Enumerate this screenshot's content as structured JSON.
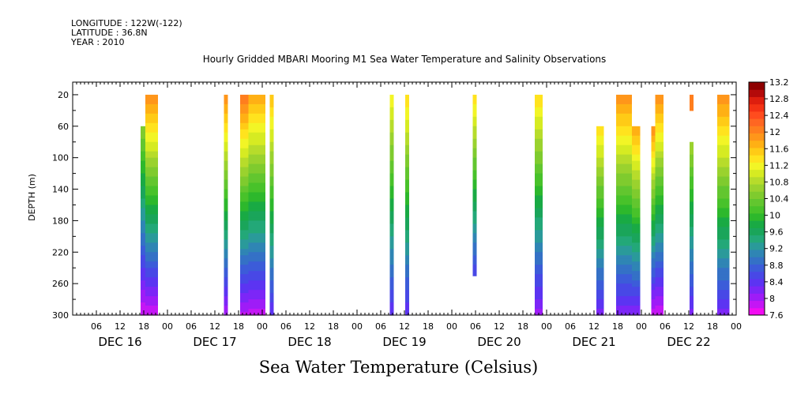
{
  "header": {
    "longitude": "LONGITUDE : 122W(-122)",
    "latitude": "LATITUDE : 36.8N",
    "year": "YEAR : 2010"
  },
  "chart_data": {
    "type": "heatmap",
    "title": "Hourly Gridded MBARI Mooring M1 Sea Water Temperature and Salinity Observations",
    "bottom_label": "Sea Water Temperature (Celsius)",
    "ylabel": "DEPTH (m)",
    "ylim": [
      300,
      0
    ],
    "y_ticks": [
      20,
      60,
      100,
      140,
      180,
      220,
      260,
      300
    ],
    "x_unit": "hours since 2010-12-16 00:00",
    "xlim": [
      0,
      168
    ],
    "x_hour_ticks": [
      {
        "h": 6,
        "label": "06"
      },
      {
        "h": 12,
        "label": "12"
      },
      {
        "h": 18,
        "label": "18"
      },
      {
        "h": 24,
        "label": "00"
      },
      {
        "h": 30,
        "label": "06"
      },
      {
        "h": 36,
        "label": "12"
      },
      {
        "h": 42,
        "label": "18"
      },
      {
        "h": 48,
        "label": "00"
      },
      {
        "h": 54,
        "label": "06"
      },
      {
        "h": 60,
        "label": "12"
      },
      {
        "h": 66,
        "label": "18"
      },
      {
        "h": 72,
        "label": "00"
      },
      {
        "h": 78,
        "label": "06"
      },
      {
        "h": 84,
        "label": "12"
      },
      {
        "h": 90,
        "label": "18"
      },
      {
        "h": 96,
        "label": "00"
      },
      {
        "h": 102,
        "label": "06"
      },
      {
        "h": 108,
        "label": "12"
      },
      {
        "h": 114,
        "label": "18"
      },
      {
        "h": 120,
        "label": "00"
      },
      {
        "h": 126,
        "label": "06"
      },
      {
        "h": 132,
        "label": "12"
      },
      {
        "h": 138,
        "label": "18"
      },
      {
        "h": 144,
        "label": "00"
      },
      {
        "h": 150,
        "label": "06"
      },
      {
        "h": 156,
        "label": "12"
      },
      {
        "h": 162,
        "label": "18"
      },
      {
        "h": 168,
        "label": "00"
      }
    ],
    "day_labels": [
      {
        "h": 12,
        "label": "DEC 16"
      },
      {
        "h": 36,
        "label": "DEC 17"
      },
      {
        "h": 60,
        "label": "DEC 18"
      },
      {
        "h": 84,
        "label": "DEC 19"
      },
      {
        "h": 108,
        "label": "DEC 20"
      },
      {
        "h": 132,
        "label": "DEC 21"
      },
      {
        "h": 156,
        "label": "DEC 22"
      }
    ],
    "colorbar": {
      "min": 7.6,
      "max": 13.2,
      "step": 0.2,
      "labels": [
        "7.6",
        "8",
        "8.4",
        "8.8",
        "9.2",
        "9.6",
        "10",
        "10.4",
        "10.8",
        "11.2",
        "11.6",
        "12",
        "12.4",
        "12.8",
        "13.2"
      ],
      "colors": [
        "#f20cf2",
        "#c416f5",
        "#9e1cf7",
        "#7c26f7",
        "#5c34f2",
        "#4848e6",
        "#3c5cd9",
        "#3471c6",
        "#2f85b4",
        "#2a9a9a",
        "#23a878",
        "#1aa55a",
        "#19aa44",
        "#2db82c",
        "#48c22a",
        "#62c62f",
        "#7fcb2e",
        "#9ad22e",
        "#b7dc2b",
        "#d6eb22",
        "#f2f526",
        "#ffe31e",
        "#ffcb16",
        "#ffb014",
        "#ff961a",
        "#ff7e1e",
        "#ff6622",
        "#ff4c1e",
        "#f43214",
        "#de1e0e",
        "#b40a0a",
        "#8e0000"
      ]
    },
    "columns": [
      {
        "x0": 17.2,
        "x1": 18.4,
        "top": 60,
        "bottom": 300,
        "t_top": 11.0,
        "t_bot": 7.8
      },
      {
        "x0": 18.4,
        "x1": 21.6,
        "top": 20,
        "bottom": 300,
        "t_top": 12.6,
        "t_bot": 7.8
      },
      {
        "x0": 38.3,
        "x1": 39.3,
        "top": 20,
        "bottom": 300,
        "t_top": 12.6,
        "t_bot": 8.0
      },
      {
        "x0": 42.4,
        "x1": 44.5,
        "top": 20,
        "bottom": 300,
        "t_top": 12.8,
        "t_bot": 7.9
      },
      {
        "x0": 44.5,
        "x1": 48.8,
        "top": 20,
        "bottom": 300,
        "t_top": 12.4,
        "t_bot": 7.9
      },
      {
        "x0": 49.9,
        "x1": 50.9,
        "top": 20,
        "bottom": 300,
        "t_top": 12.2,
        "t_bot": 8.4
      },
      {
        "x0": 80.3,
        "x1": 81.3,
        "top": 20,
        "bottom": 300,
        "t_top": 11.8,
        "t_bot": 8.4
      },
      {
        "x0": 84.2,
        "x1": 85.2,
        "top": 20,
        "bottom": 300,
        "t_top": 12.0,
        "t_bot": 8.4
      },
      {
        "x0": 101.3,
        "x1": 102.3,
        "top": 20,
        "bottom": 250,
        "t_top": 12.0,
        "t_bot": 8.6
      },
      {
        "x0": 117.0,
        "x1": 119.0,
        "top": 20,
        "bottom": 300,
        "t_top": 12.0,
        "t_bot": 8.1
      },
      {
        "x0": 132.6,
        "x1": 134.5,
        "top": 60,
        "bottom": 300,
        "t_top": 12.0,
        "t_bot": 8.3
      },
      {
        "x0": 137.6,
        "x1": 139.6,
        "top": 20,
        "bottom": 300,
        "t_top": 12.6,
        "t_bot": 8.2
      },
      {
        "x0": 139.6,
        "x1": 141.6,
        "top": 20,
        "bottom": 300,
        "t_top": 12.6,
        "t_bot": 8.2
      },
      {
        "x0": 141.6,
        "x1": 143.7,
        "top": 60,
        "bottom": 300,
        "t_top": 12.4,
        "t_bot": 8.2
      },
      {
        "x0": 146.5,
        "x1": 147.5,
        "top": 60,
        "bottom": 300,
        "t_top": 12.6,
        "t_bot": 7.8
      },
      {
        "x0": 147.5,
        "x1": 149.6,
        "top": 20,
        "bottom": 300,
        "t_top": 12.6,
        "t_bot": 7.8
      },
      {
        "x0": 156.2,
        "x1": 157.2,
        "top": 20,
        "bottom": 40,
        "t_top": 12.6,
        "t_bot": 12.6
      },
      {
        "x0": 156.2,
        "x1": 157.2,
        "top": 80,
        "bottom": 300,
        "t_top": 11.2,
        "t_bot": 8.3
      },
      {
        "x0": 163.2,
        "x1": 166.3,
        "top": 20,
        "bottom": 300,
        "t_top": 12.6,
        "t_bot": 8.3
      },
      {
        "x0": 169.2,
        "x1": 171.3,
        "top": 20,
        "bottom": 300,
        "t_top": 12.6,
        "t_bot": 8.1
      }
    ]
  }
}
